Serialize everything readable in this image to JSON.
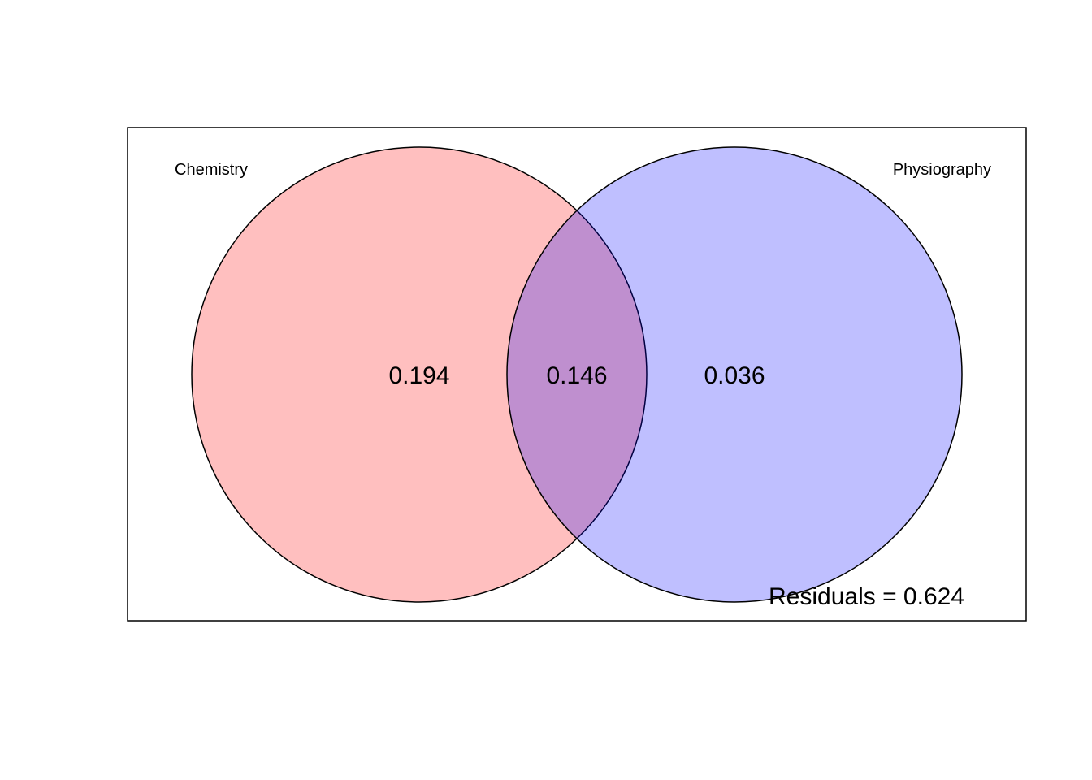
{
  "diagram": {
    "type": "venn",
    "sets": [
      {
        "name": "Chemistry",
        "color": "#ff0000",
        "fill_opacity": 0.25
      },
      {
        "name": "Physiography",
        "color": "#0000ff",
        "fill_opacity": 0.25
      }
    ],
    "regions": {
      "chemistry_only": "0.194",
      "shared": "0.146",
      "physiography_only": "0.036"
    },
    "residuals_text": "Residuals = 0.624"
  }
}
